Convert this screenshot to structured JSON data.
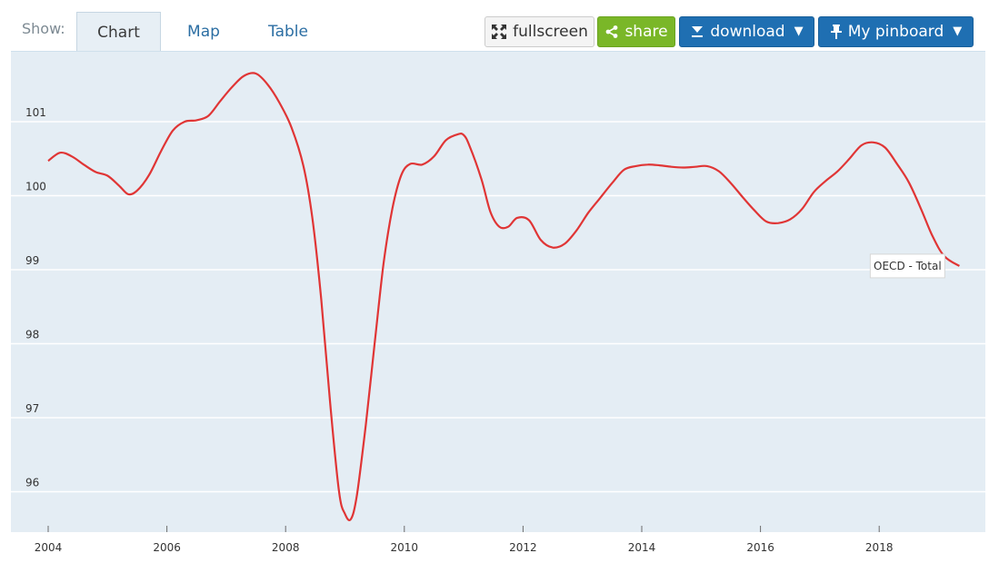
{
  "toolbar": {
    "show_label": "Show:",
    "tabs": [
      {
        "label": "Chart",
        "active": true
      },
      {
        "label": "Map",
        "active": false
      },
      {
        "label": "Table",
        "active": false
      }
    ],
    "buttons": {
      "fullscreen": "fullscreen",
      "share": "share",
      "download": "download",
      "pinboard": "My pinboard"
    },
    "colors": {
      "share_green": "#7ab728",
      "download_blue": "#1f6fb2"
    }
  },
  "chart_data": {
    "type": "line",
    "title": "",
    "xlabel": "",
    "ylabel": "",
    "xlim": [
      2004,
      2019.5
    ],
    "ylim": [
      95.5,
      102.0
    ],
    "x_ticks": [
      "2004",
      "2006",
      "2008",
      "2010",
      "2012",
      "2014",
      "2016",
      "2018"
    ],
    "y_ticks": [
      "96",
      "97",
      "98",
      "99",
      "100",
      "101"
    ],
    "grid": "horizontal",
    "plot_background": "#e4edf4",
    "series": [
      {
        "name": "OECD - Total",
        "color": "#e03535",
        "label_position": "end",
        "x": [
          2004.0,
          2004.2,
          2004.4,
          2004.6,
          2004.8,
          2005.0,
          2005.2,
          2005.35,
          2005.5,
          2005.7,
          2005.9,
          2006.1,
          2006.3,
          2006.5,
          2006.7,
          2006.9,
          2007.1,
          2007.3,
          2007.5,
          2007.7,
          2007.9,
          2008.1,
          2008.3,
          2008.45,
          2008.6,
          2008.75,
          2008.9,
          2009.0,
          2009.1,
          2009.2,
          2009.35,
          2009.5,
          2009.65,
          2009.8,
          2009.95,
          2010.1,
          2010.3,
          2010.5,
          2010.7,
          2010.9,
          2011.0,
          2011.1,
          2011.3,
          2011.45,
          2011.6,
          2011.75,
          2011.9,
          2012.1,
          2012.3,
          2012.5,
          2012.7,
          2012.9,
          2013.1,
          2013.3,
          2013.5,
          2013.7,
          2013.9,
          2014.1,
          2014.3,
          2014.5,
          2014.7,
          2014.9,
          2015.1,
          2015.3,
          2015.5,
          2015.7,
          2015.9,
          2016.1,
          2016.3,
          2016.5,
          2016.7,
          2016.9,
          2017.1,
          2017.3,
          2017.5,
          2017.7,
          2017.9,
          2018.1,
          2018.3,
          2018.5,
          2018.7,
          2018.9,
          2019.1,
          2019.35
        ],
        "values": [
          100.47,
          100.58,
          100.53,
          100.42,
          100.32,
          100.27,
          100.13,
          100.02,
          100.07,
          100.28,
          100.6,
          100.88,
          101.0,
          101.02,
          101.08,
          101.28,
          101.47,
          101.62,
          101.65,
          101.5,
          101.25,
          100.92,
          100.4,
          99.7,
          98.6,
          97.2,
          96.0,
          95.7,
          95.63,
          95.95,
          96.9,
          98.0,
          99.08,
          99.83,
          100.28,
          100.43,
          100.42,
          100.53,
          100.75,
          100.83,
          100.82,
          100.67,
          100.22,
          99.78,
          99.58,
          99.58,
          99.7,
          99.67,
          99.4,
          99.3,
          99.35,
          99.53,
          99.77,
          99.97,
          100.17,
          100.35,
          100.4,
          100.42,
          100.41,
          100.39,
          100.38,
          100.39,
          100.4,
          100.33,
          100.17,
          99.98,
          99.8,
          99.65,
          99.63,
          99.68,
          99.82,
          100.05,
          100.2,
          100.33,
          100.5,
          100.68,
          100.72,
          100.65,
          100.43,
          100.18,
          99.83,
          99.45,
          99.18,
          99.05
        ]
      }
    ]
  }
}
